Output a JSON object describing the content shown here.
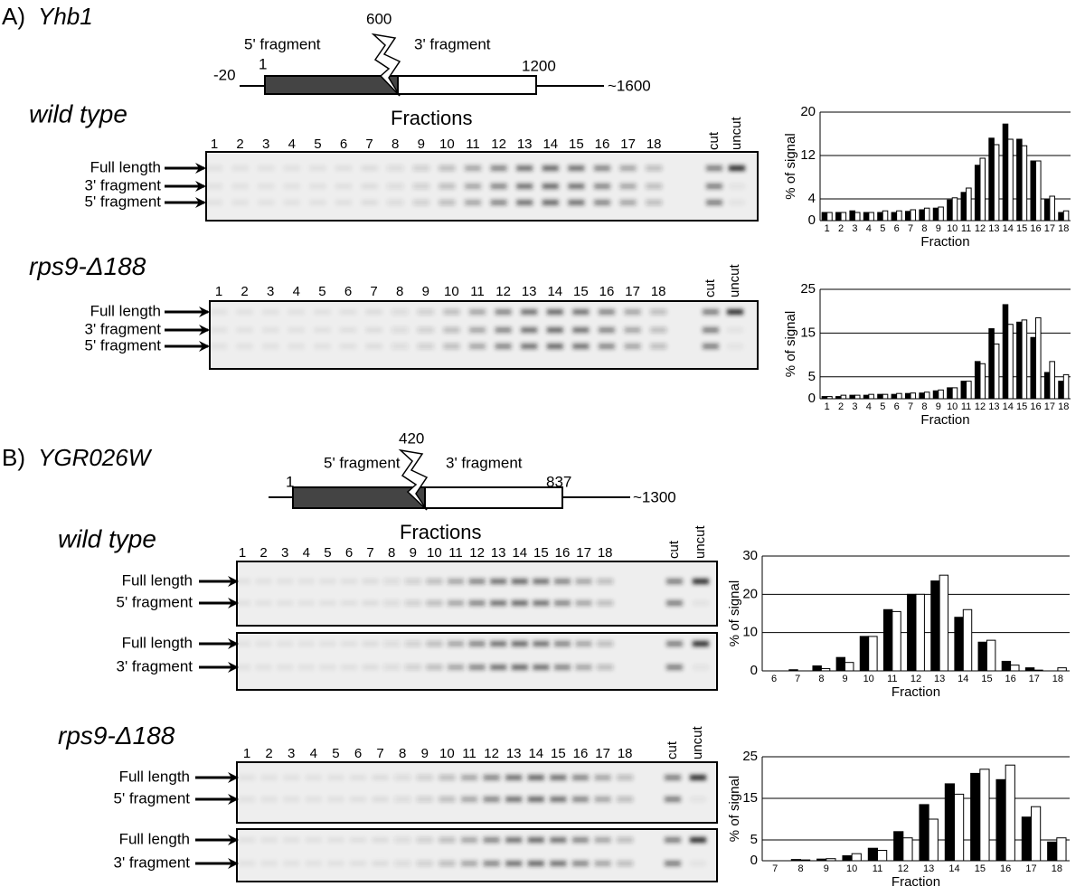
{
  "figure": {
    "panels": [
      {
        "label": "A)",
        "gene": "Yhb1",
        "map": {
          "left": "-20",
          "start": "1",
          "cut": "600",
          "end": "1200",
          "right": "~1600",
          "frag5": "5' fragment",
          "frag3": "3' fragment"
        },
        "blots": [
          {
            "strain": "wild type",
            "heading": "Fractions",
            "lanes": [
              "1",
              "2",
              "3",
              "4",
              "5",
              "6",
              "7",
              "8",
              "9",
              "10",
              "11",
              "12",
              "13",
              "14",
              "15",
              "16",
              "17",
              "18",
              "cut",
              "uncut"
            ],
            "gels": [
              {
                "bands": [
                  "Full length",
                  "3' fragment",
                  "5' fragment"
                ]
              }
            ]
          },
          {
            "strain_main": "rps9-",
            "strain_delta": "Δ188",
            "lanes": [
              "1",
              "2",
              "3",
              "4",
              "5",
              "6",
              "7",
              "8",
              "9",
              "10",
              "11",
              "12",
              "13",
              "14",
              "15",
              "16",
              "17",
              "18",
              "cut",
              "uncut"
            ],
            "gels": [
              {
                "bands": [
                  "Full length",
                  "3' fragment",
                  "5' fragment"
                ]
              }
            ]
          }
        ]
      },
      {
        "label": "B)",
        "gene": "YGR026W",
        "map": {
          "start": "1",
          "cut": "420",
          "end": "837",
          "right": "~1300",
          "frag5": "5' fragment",
          "frag3": "3' fragment"
        },
        "blots": [
          {
            "strain": "wild type",
            "heading": "Fractions",
            "lanes": [
              "1",
              "2",
              "3",
              "4",
              "5",
              "6",
              "7",
              "8",
              "9",
              "10",
              "11",
              "12",
              "13",
              "14",
              "15",
              "16",
              "17",
              "18",
              "cut",
              "uncut"
            ],
            "gels": [
              {
                "bands": [
                  "Full length",
                  "5' fragment"
                ]
              },
              {
                "bands": [
                  "Full length",
                  "3' fragment"
                ]
              }
            ]
          },
          {
            "strain_main": "rps9-",
            "strain_delta": "Δ188",
            "lanes": [
              "1",
              "2",
              "3",
              "4",
              "5",
              "6",
              "7",
              "8",
              "9",
              "10",
              "11",
              "12",
              "13",
              "14",
              "15",
              "16",
              "17",
              "18",
              "cut",
              "uncut"
            ],
            "gels": [
              {
                "bands": [
                  "Full length",
                  "5' fragment"
                ]
              },
              {
                "bands": [
                  "Full length",
                  "3' fragment"
                ]
              }
            ]
          }
        ]
      }
    ]
  },
  "chart_data": [
    {
      "type": "bar",
      "xlabel": "Fraction",
      "ylabel": "% of signal",
      "categories": [
        "1",
        "2",
        "3",
        "4",
        "5",
        "6",
        "7",
        "8",
        "9",
        "10",
        "11",
        "12",
        "13",
        "14",
        "15",
        "16",
        "17",
        "18"
      ],
      "series": [
        {
          "color": "#000000",
          "values": [
            1.5,
            1.5,
            1.8,
            1.5,
            1.5,
            1.5,
            1.7,
            2,
            2.3,
            3.8,
            5.2,
            10.2,
            15.2,
            17.8,
            15,
            11,
            4,
            1.5
          ]
        },
        {
          "color": "#ffffff",
          "values": [
            1.5,
            1.5,
            1.5,
            1.5,
            1.8,
            1.8,
            2,
            2.3,
            2.5,
            4.2,
            6,
            11.5,
            14,
            15,
            13.8,
            11,
            4.5,
            1.8
          ]
        }
      ],
      "ylim": [
        0,
        20
      ],
      "yticks": [
        0,
        4,
        12,
        20
      ],
      "grid": true
    },
    {
      "type": "bar",
      "xlabel": "Fraction",
      "ylabel": "% of signal",
      "categories": [
        "1",
        "2",
        "3",
        "4",
        "5",
        "6",
        "7",
        "8",
        "9",
        "10",
        "11",
        "12",
        "13",
        "14",
        "15",
        "16",
        "17",
        "18"
      ],
      "series": [
        {
          "color": "#000000",
          "values": [
            0.5,
            0.5,
            0.8,
            0.8,
            1,
            1,
            1.2,
            1.3,
            1.8,
            2.5,
            4,
            8.5,
            16,
            21.5,
            17.5,
            14,
            6,
            4
          ]
        },
        {
          "color": "#ffffff",
          "values": [
            0.5,
            0.8,
            0.8,
            1,
            1,
            1.2,
            1.3,
            1.5,
            2,
            2.5,
            4,
            8,
            12.5,
            17,
            18,
            18.5,
            8.5,
            5.5
          ]
        }
      ],
      "ylim": [
        0,
        25
      ],
      "yticks": [
        0,
        5,
        15,
        25
      ],
      "grid": true
    },
    {
      "type": "bar",
      "xlabel": "Fraction",
      "ylabel": "% of signal",
      "categories": [
        "6",
        "7",
        "8",
        "9",
        "10",
        "11",
        "12",
        "13",
        "14",
        "15",
        "16",
        "17",
        "18"
      ],
      "series": [
        {
          "color": "#000000",
          "values": [
            0,
            0.3,
            1.3,
            3.5,
            9,
            16,
            20,
            23.5,
            14,
            7.5,
            2.5,
            0.8,
            0
          ]
        },
        {
          "color": "#ffffff",
          "values": [
            0,
            0,
            0.6,
            2.2,
            9,
            15.5,
            20,
            25,
            16,
            8,
            1.5,
            0.2,
            0.8
          ]
        }
      ],
      "ylim": [
        0,
        30
      ],
      "yticks": [
        0,
        10,
        20,
        30
      ],
      "grid": true
    },
    {
      "type": "bar",
      "xlabel": "Fraction",
      "ylabel": "% of signal",
      "categories": [
        "7",
        "8",
        "9",
        "10",
        "11",
        "12",
        "13",
        "14",
        "15",
        "16",
        "17",
        "18"
      ],
      "series": [
        {
          "color": "#000000",
          "values": [
            0,
            0.3,
            0.4,
            1.2,
            3,
            7,
            13.5,
            18.5,
            21,
            19.5,
            10.5,
            4.5
          ]
        },
        {
          "color": "#ffffff",
          "values": [
            0,
            0.2,
            0.5,
            1.7,
            2.5,
            5.5,
            10,
            16,
            22,
            23,
            13,
            5.5
          ]
        }
      ],
      "ylim": [
        0,
        25
      ],
      "yticks": [
        0,
        5,
        15,
        25
      ],
      "grid": true
    }
  ]
}
